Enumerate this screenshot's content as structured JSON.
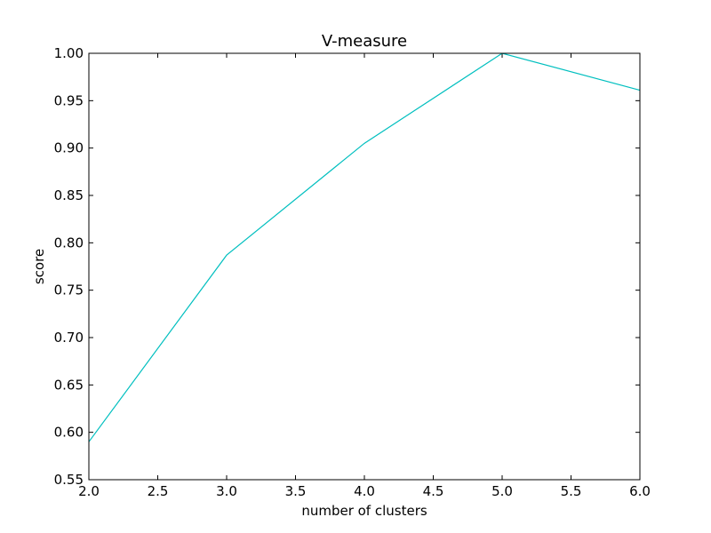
{
  "chart_data": {
    "type": "line",
    "title": "V-measure",
    "xlabel": "number of clusters",
    "ylabel": "score",
    "xlim": [
      2.0,
      6.0
    ],
    "ylim": [
      0.55,
      1.0
    ],
    "xticks": [
      "2.0",
      "2.5",
      "3.0",
      "3.5",
      "4.0",
      "4.5",
      "5.0",
      "5.5",
      "6.0"
    ],
    "yticks": [
      "0.55",
      "0.60",
      "0.65",
      "0.70",
      "0.75",
      "0.80",
      "0.85",
      "0.90",
      "0.95",
      "1.00"
    ],
    "grid": false,
    "series": [
      {
        "color": "#00bfbf",
        "x": [
          2,
          3,
          4,
          5,
          6
        ],
        "y": [
          0.59,
          0.787,
          0.905,
          1.0,
          0.961
        ]
      }
    ]
  }
}
